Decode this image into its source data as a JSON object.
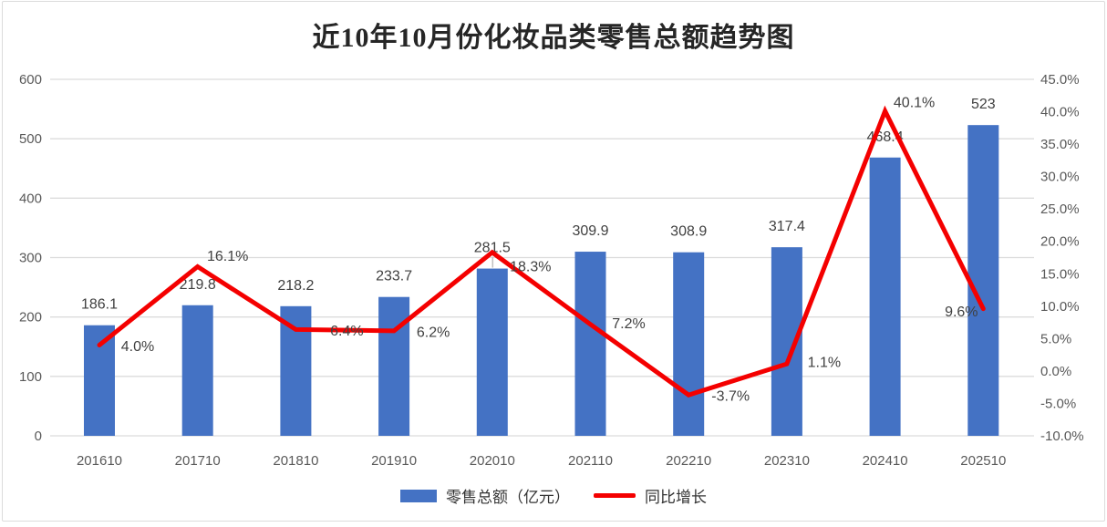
{
  "title": "近10年10月份化妆品类零售总额趋势图",
  "legend": {
    "bars_label": "零售总额（亿元）",
    "line_label": "同比增长"
  },
  "colors": {
    "bar": "#4472C4",
    "line": "#F40000",
    "grid": "#DCDCDC",
    "axis_text": "#595959",
    "label_text": "#404040",
    "leader": "#BFBFBF",
    "border": "#DCDCDC"
  },
  "axes": {
    "left_ticks": [
      "0",
      "100",
      "200",
      "300",
      "400",
      "500",
      "600"
    ],
    "right_ticks": [
      "-10.0%",
      "-5.0%",
      "0.0%",
      "5.0%",
      "10.0%",
      "15.0%",
      "20.0%",
      "25.0%",
      "30.0%",
      "35.0%",
      "40.0%",
      "45.0%"
    ]
  },
  "chart_data": {
    "type": "bar",
    "subtype": "combo-bar-line",
    "title": "近10年10月份化妆品类零售总额趋势图",
    "categories": [
      "201610",
      "201710",
      "201810",
      "201910",
      "202010",
      "202110",
      "202210",
      "202310",
      "202410",
      "202510"
    ],
    "series": [
      {
        "name": "零售总额（亿元）",
        "type": "bar",
        "axis": "left",
        "values": [
          186.1,
          219.8,
          218.2,
          233.7,
          281.5,
          309.9,
          308.9,
          317.4,
          468.4,
          523
        ],
        "labels": [
          "186.1",
          "219.8",
          "218.2",
          "233.7",
          "281.5",
          "309.9",
          "308.9",
          "317.4",
          "468.4",
          "523"
        ]
      },
      {
        "name": "同比增长",
        "type": "line",
        "axis": "right",
        "values": [
          4.0,
          16.1,
          6.4,
          6.2,
          18.3,
          7.2,
          -3.7,
          1.1,
          40.1,
          9.6
        ],
        "labels": [
          "4.0%",
          "16.1%",
          "6.4%",
          "6.2%",
          "18.3%",
          "7.2%",
          "-3.7%",
          "1.1%",
          "40.1%",
          "9.6%"
        ]
      }
    ],
    "left_axis": {
      "min": 0,
      "max": 600,
      "step": 100
    },
    "right_axis": {
      "min": -10,
      "max": 45,
      "step": 5,
      "format": "percent"
    },
    "grid": true,
    "legend_position": "bottom"
  }
}
